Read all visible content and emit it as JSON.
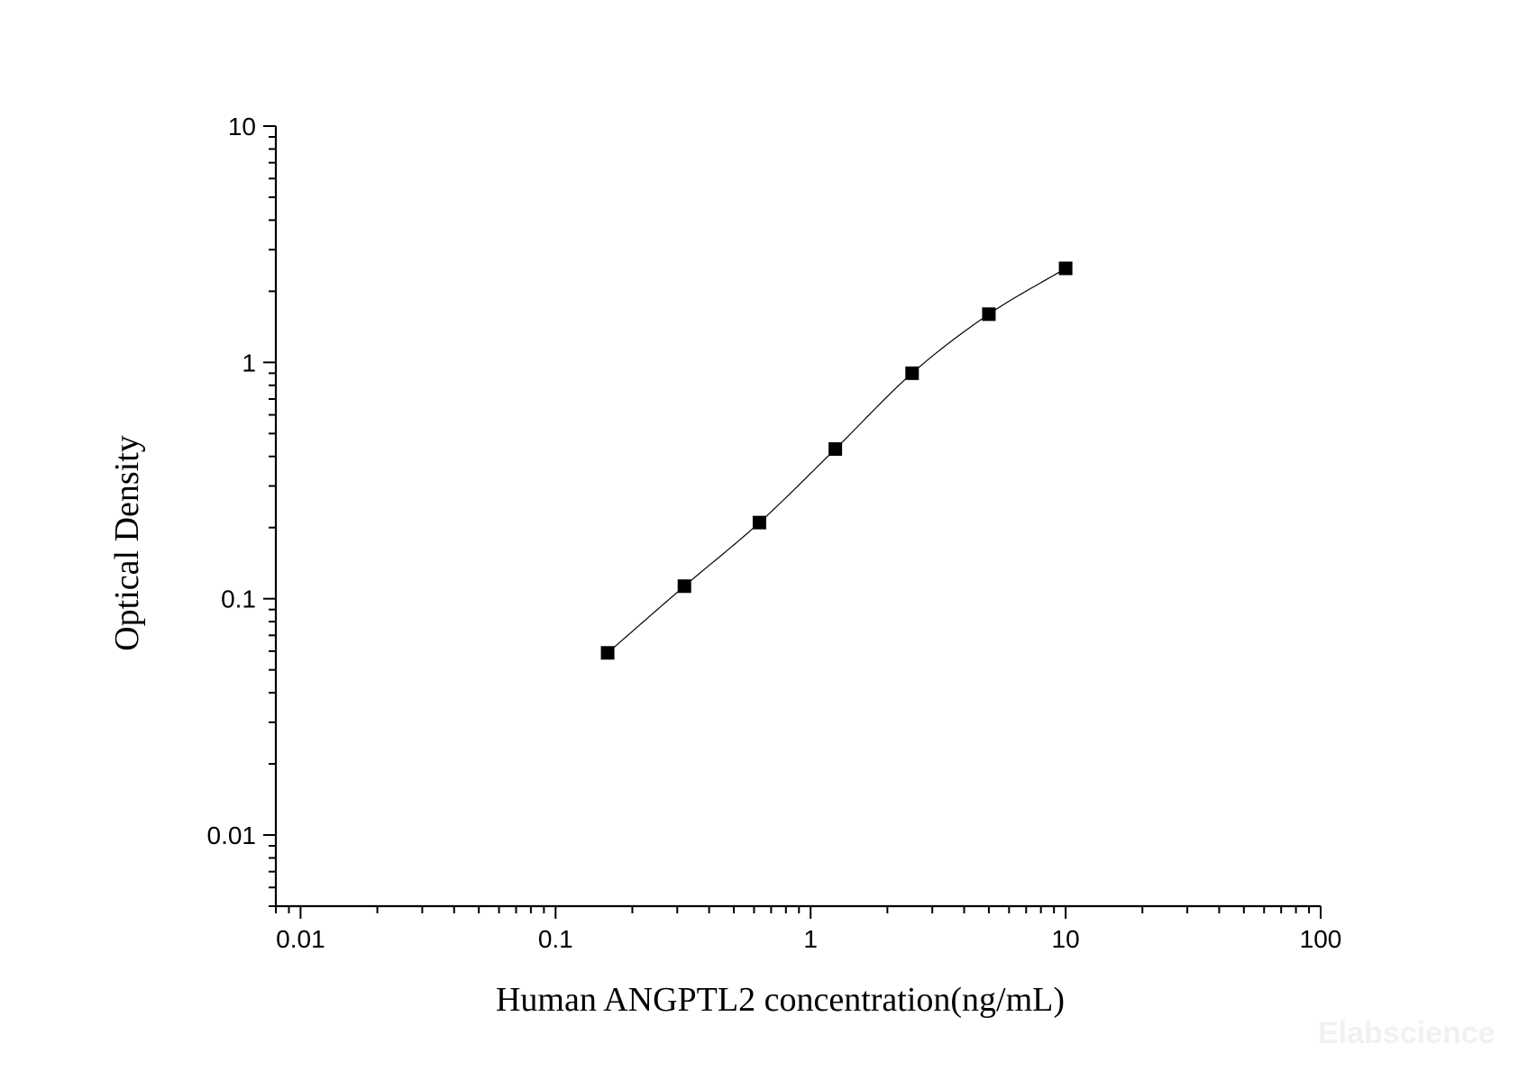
{
  "chart_data": {
    "type": "scatter",
    "x_scale": "log",
    "y_scale": "log",
    "xlabel": "Human ANGPTL2 concentration(ng/mL)",
    "ylabel": "Optical Density",
    "xlim": [
      0.008,
      100
    ],
    "ylim": [
      0.005,
      10
    ],
    "x_ticks": [
      {
        "value": 0.01,
        "label": "0.01"
      },
      {
        "value": 0.1,
        "label": "0.1"
      },
      {
        "value": 1,
        "label": "1"
      },
      {
        "value": 10,
        "label": "10"
      },
      {
        "value": 100,
        "label": "100"
      }
    ],
    "y_ticks": [
      {
        "value": 0.01,
        "label": "0.01"
      },
      {
        "value": 0.1,
        "label": "0.1"
      },
      {
        "value": 1,
        "label": "1"
      },
      {
        "value": 10,
        "label": "10"
      }
    ],
    "series": [
      {
        "x": [
          0.16,
          0.32,
          0.63,
          1.25,
          2.5,
          5,
          10
        ],
        "y": [
          0.059,
          0.113,
          0.21,
          0.43,
          0.9,
          1.6,
          2.5
        ],
        "marker": "square",
        "color": "#000000",
        "fit_curve": true
      }
    ],
    "grid": false,
    "legend": "none"
  },
  "watermark": "Elabscience"
}
